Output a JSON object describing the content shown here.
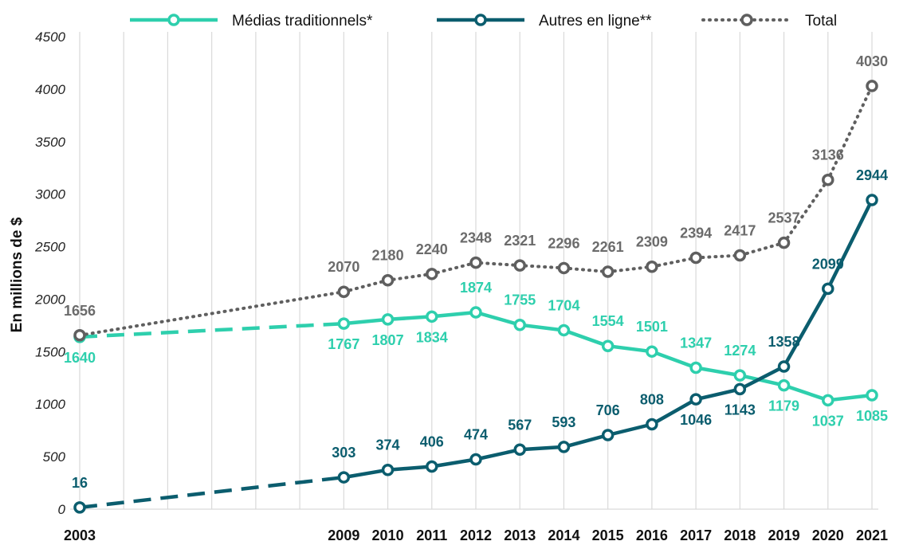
{
  "chart_data": {
    "type": "line",
    "ylabel": "En millions de $",
    "ylim": [
      0,
      4500
    ],
    "yticks": [
      "0",
      "500",
      "1000",
      "1500",
      "2000",
      "2500",
      "3000",
      "3500",
      "4000",
      "4500"
    ],
    "x": [
      2003,
      2009,
      2010,
      2011,
      2012,
      2013,
      2014,
      2015,
      2016,
      2017,
      2018,
      2019,
      2020,
      2021
    ],
    "xlabels": [
      "2003",
      "2009",
      "2010",
      "2011",
      "2012",
      "2013",
      "2014",
      "2015",
      "2016",
      "2017",
      "2018",
      "2019",
      "2020",
      "2021"
    ],
    "legend_position": "top",
    "grid": "vertical",
    "series": [
      {
        "name": "Médias traditionnels*",
        "color": "#2ecfad",
        "style": "solid",
        "values": [
          1640,
          1767,
          1807,
          1834,
          1874,
          1755,
          1704,
          1554,
          1501,
          1347,
          1274,
          1179,
          1037,
          1085
        ],
        "labels": [
          "1640",
          "1767",
          "1807",
          "1834",
          "1874",
          "1755",
          "1704",
          "1554",
          "1501",
          "1347",
          "1274",
          "1179",
          "1037",
          "1085"
        ]
      },
      {
        "name": "Autres en ligne**",
        "color": "#0b5d6e",
        "style": "solid",
        "values": [
          16,
          303,
          374,
          406,
          474,
          567,
          593,
          706,
          808,
          1046,
          1143,
          1358,
          2099,
          2944
        ],
        "labels": [
          "16",
          "303",
          "374",
          "406",
          "474",
          "567",
          "593",
          "706",
          "808",
          "1046",
          "1143",
          "1358",
          "2099",
          "2944"
        ]
      },
      {
        "name": "Total",
        "color": "#5f5f5f",
        "style": "dotted",
        "values": [
          1656,
          2070,
          2180,
          2240,
          2348,
          2321,
          2296,
          2261,
          2309,
          2394,
          2417,
          2537,
          3136,
          4030
        ],
        "labels": [
          "1656",
          "2070",
          "2180",
          "2240",
          "2348",
          "2321",
          "2296",
          "2261",
          "2309",
          "2394",
          "2417",
          "2537",
          "3136",
          "4030"
        ]
      }
    ]
  }
}
